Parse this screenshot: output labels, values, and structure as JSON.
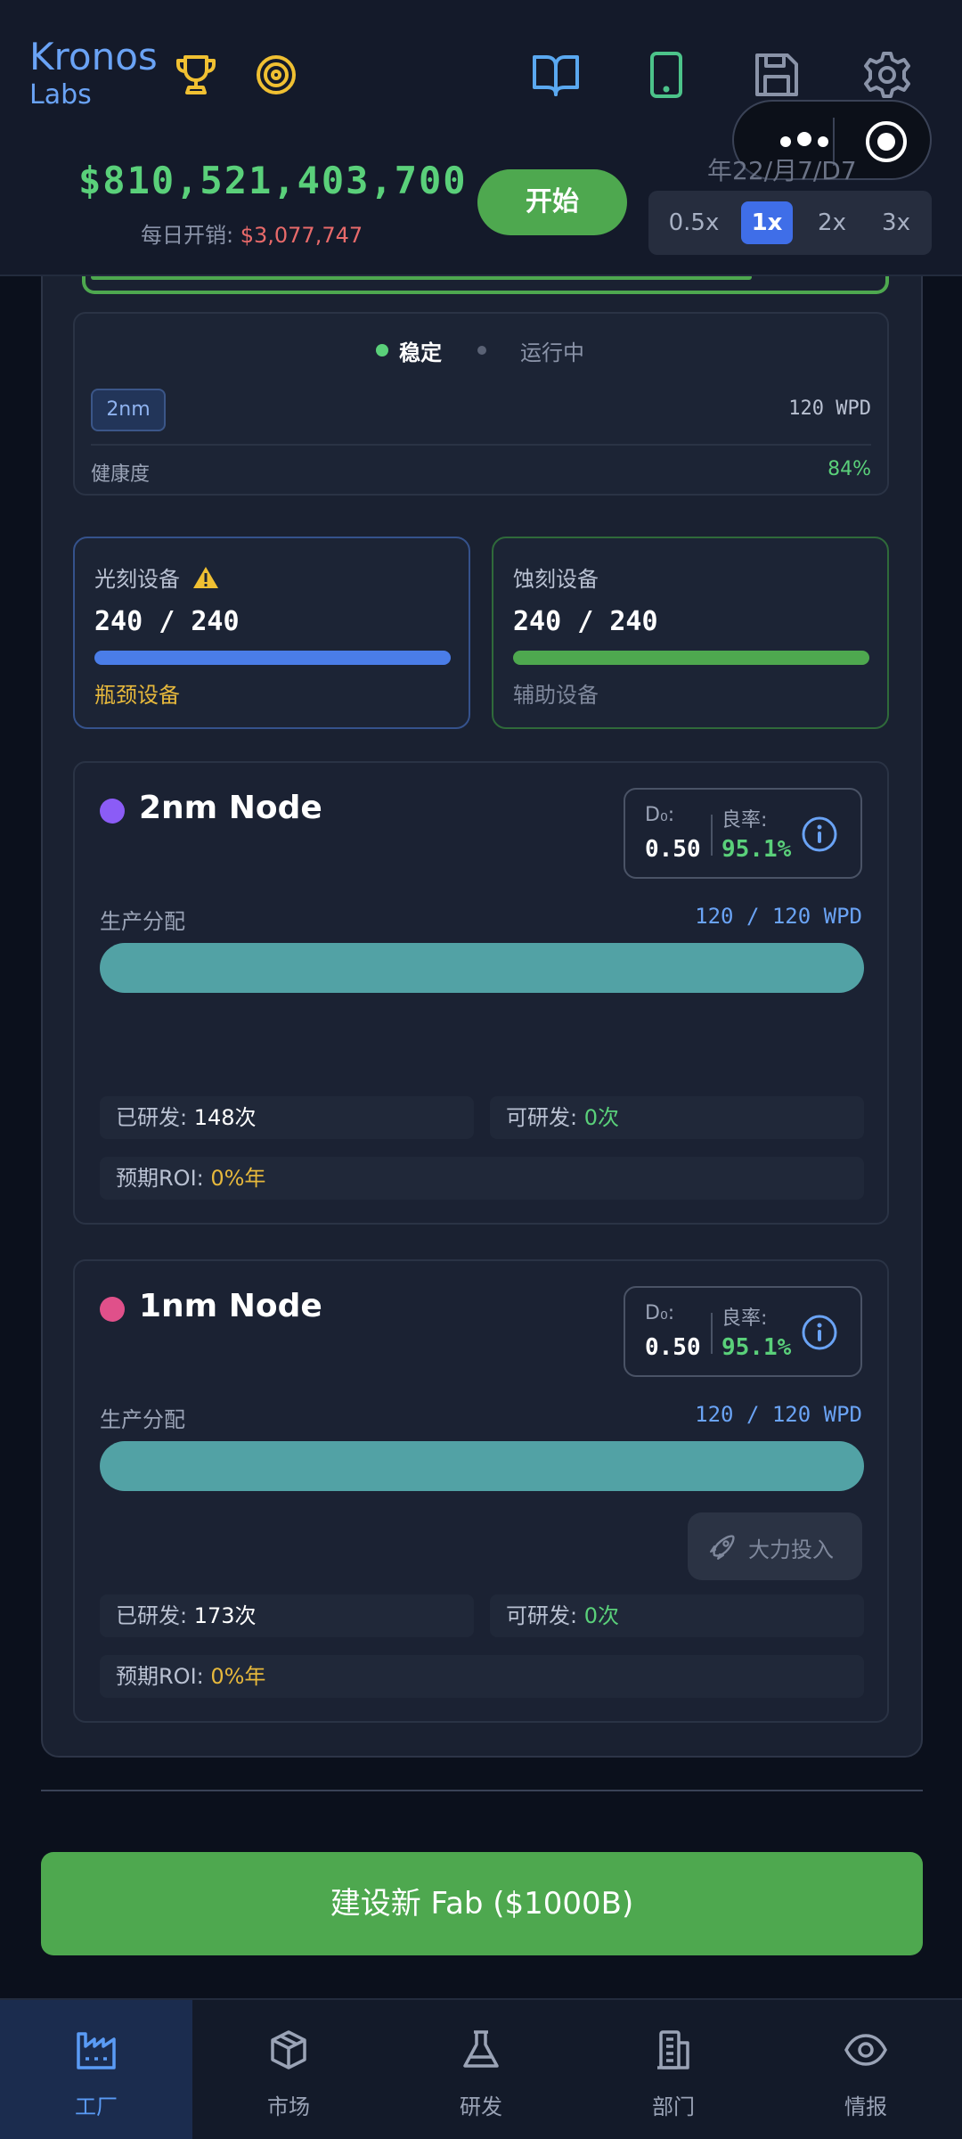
{
  "header": {
    "logo_title": "Kronos",
    "logo_sub": "Labs",
    "money": "$810,521,403,700",
    "daily_label": "每日开销: ",
    "daily_value": "$3,077,747",
    "start_label": "开始",
    "date": "年22/月7/D7",
    "speeds": [
      "0.5x",
      "1x",
      "2x",
      "3x"
    ],
    "active_speed": "1x"
  },
  "status": {
    "stable": "稳定",
    "running": "运行中",
    "node_badge": "2nm",
    "wpd": "120 WPD",
    "health_label": "健康度",
    "health_value": "84%"
  },
  "equipment": [
    {
      "name": "光刻设备",
      "count": "240 / 240",
      "footer": "瓶颈设备",
      "fill": 1.0
    },
    {
      "name": "蚀刻设备",
      "count": "240 / 240",
      "footer": "辅助设备",
      "fill": 1.0
    }
  ],
  "nodes": [
    {
      "title": "2nm Node",
      "d0_label": "D₀:",
      "d0_value": "0.50",
      "yield_label": "良率:",
      "yield_value": "95.1%",
      "alloc_label": "生产分配",
      "alloc_value": "120 / 120 WPD",
      "alloc_fill": 1.0,
      "researched_label": "已研发: ",
      "researched_value": "148次",
      "available_label": "可研发: ",
      "available_value": "0次",
      "roi_label": "预期ROI: ",
      "roi_value": "0%年"
    },
    {
      "title": "1nm Node",
      "d0_label": "D₀:",
      "d0_value": "0.50",
      "yield_label": "良率:",
      "yield_value": "95.1%",
      "alloc_label": "生产分配",
      "alloc_value": "120 / 120 WPD",
      "alloc_fill": 1.0,
      "invest_label": "大力投入",
      "researched_label": "已研发: ",
      "researched_value": "173次",
      "available_label": "可研发: ",
      "available_value": "0次",
      "roi_label": "预期ROI: ",
      "roi_value": "0%年"
    }
  ],
  "build_button": "建设新 Fab ($1000B)",
  "nav": [
    {
      "label": "工厂",
      "icon": "factory-icon",
      "active": true
    },
    {
      "label": "市场",
      "icon": "box-icon",
      "active": false
    },
    {
      "label": "研发",
      "icon": "flask-icon",
      "active": false
    },
    {
      "label": "部门",
      "icon": "building-icon",
      "active": false
    },
    {
      "label": "情报",
      "icon": "eye-icon",
      "active": false
    }
  ],
  "colors": {
    "accent_blue": "#3f6ee8",
    "green": "#4ea84f",
    "money_green": "#5ad07a",
    "expense_red": "#e86a6a",
    "allocation_teal": "#52a2a5"
  }
}
